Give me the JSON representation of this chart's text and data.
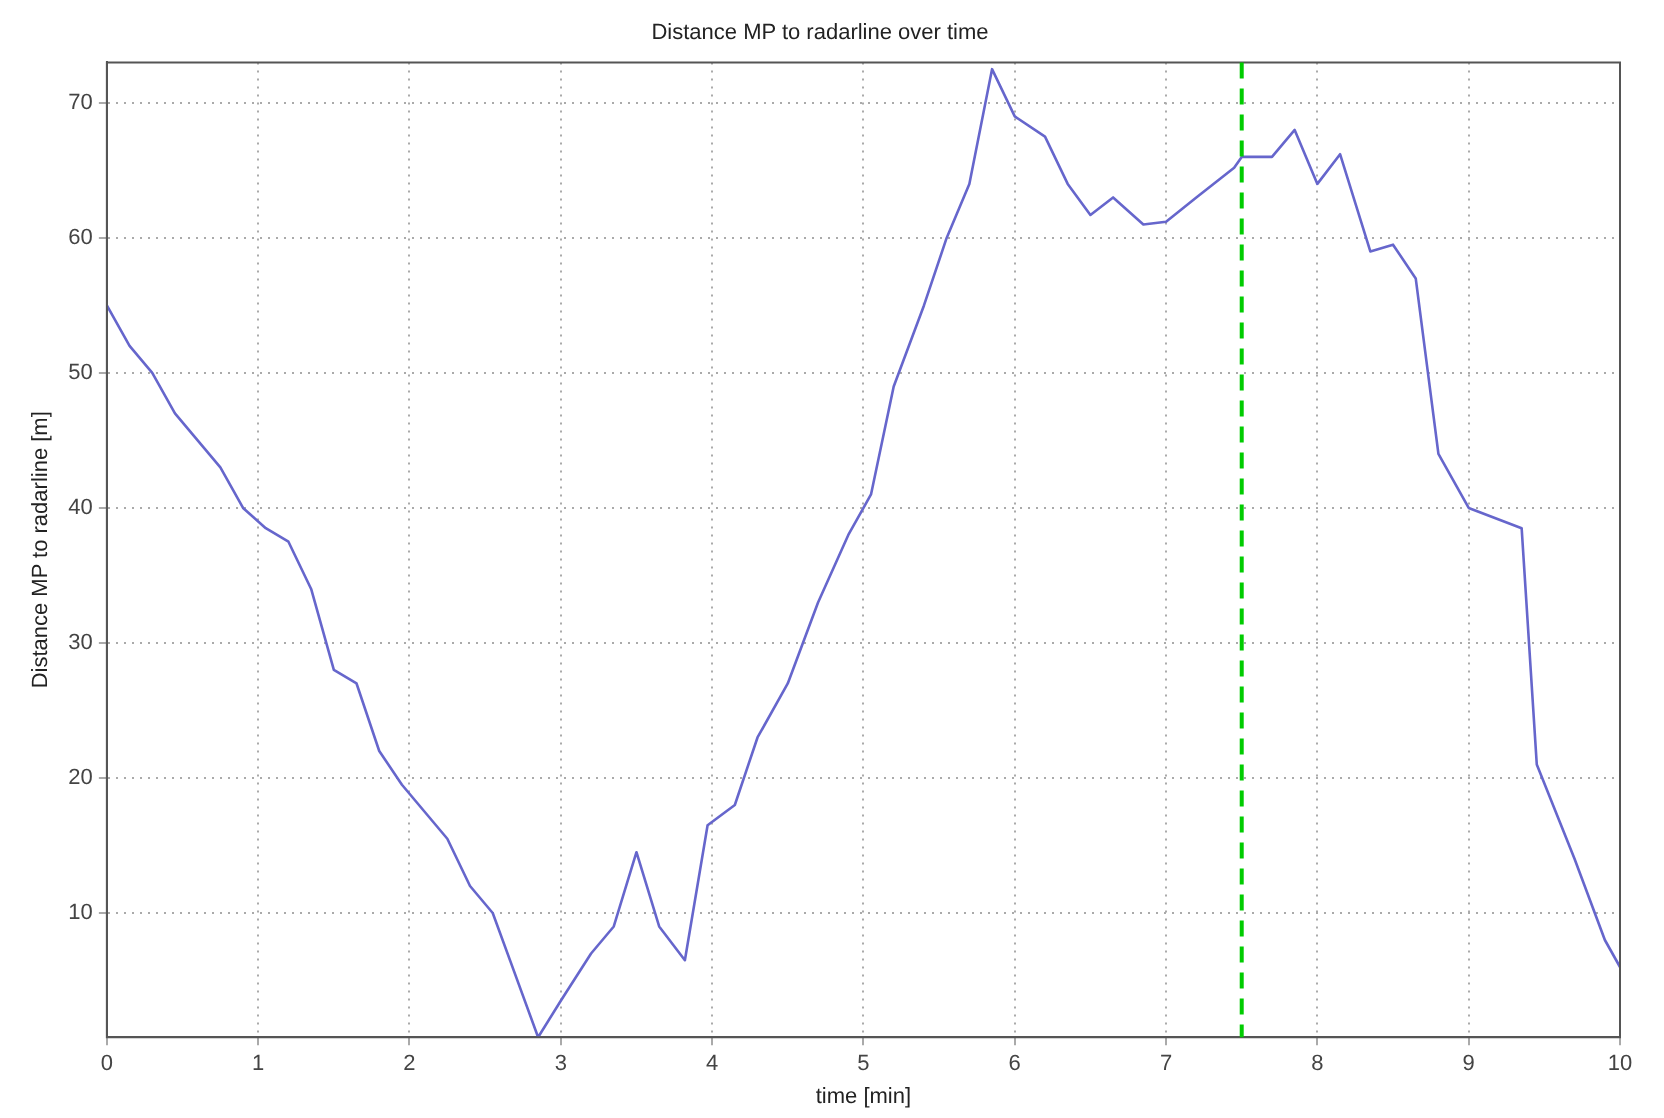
{
  "chart_data": {
    "type": "line",
    "title": "Distance MP to radarline over time",
    "xlabel": "time [min]",
    "ylabel": "Distance MP to radarline [m]",
    "x": [
      0,
      0.15,
      0.3,
      0.45,
      0.6,
      0.75,
      0.9,
      1.05,
      1.2,
      1.35,
      1.5,
      1.65,
      1.8,
      1.95,
      2.1,
      2.25,
      2.4,
      2.55,
      2.85,
      3.0,
      3.2,
      3.35,
      3.5,
      3.65,
      3.82,
      3.97,
      4.15,
      4.3,
      4.5,
      4.7,
      4.9,
      5.05,
      5.2,
      5.4,
      5.55,
      5.7,
      5.85,
      6.0,
      6.2,
      6.35,
      6.5,
      6.65,
      6.85,
      7.0,
      7.2,
      7.45,
      7.5,
      7.7,
      7.85,
      8.0,
      8.15,
      8.35,
      8.5,
      8.65,
      8.8,
      9.0,
      9.35,
      9.45,
      9.7,
      9.9,
      10
    ],
    "series": [
      {
        "color": "#6666cc",
        "values": [
          55,
          52,
          50,
          47,
          45,
          43,
          40,
          38.5,
          37.5,
          34,
          28,
          27,
          22,
          19.5,
          17.5,
          15.5,
          12,
          10,
          0.8,
          3.5,
          7,
          9,
          14.5,
          9,
          6.5,
          16.5,
          18,
          23,
          27,
          33,
          38,
          41,
          49,
          55,
          60,
          64,
          72.5,
          69,
          67.5,
          64,
          61.7,
          63,
          61,
          61.2,
          63,
          65.2,
          66,
          66,
          68,
          64,
          66.2,
          59,
          59.5,
          57,
          44,
          40,
          38.5,
          21,
          14,
          8,
          6
        ]
      }
    ],
    "xlim": [
      0,
      10
    ],
    "xticks": [
      0,
      1,
      2,
      3,
      4,
      5,
      6,
      7,
      8,
      9,
      10
    ],
    "ylim": [
      0.8,
      73
    ],
    "yticks": [
      10,
      20,
      30,
      40,
      50,
      60,
      70
    ],
    "ref_lines": [
      {
        "axis": "x",
        "value": 7.5,
        "color": "#00cc00",
        "line_style": "dashed"
      }
    ],
    "grid": true,
    "legend": false,
    "marker": "none",
    "line_style": "solid"
  }
}
